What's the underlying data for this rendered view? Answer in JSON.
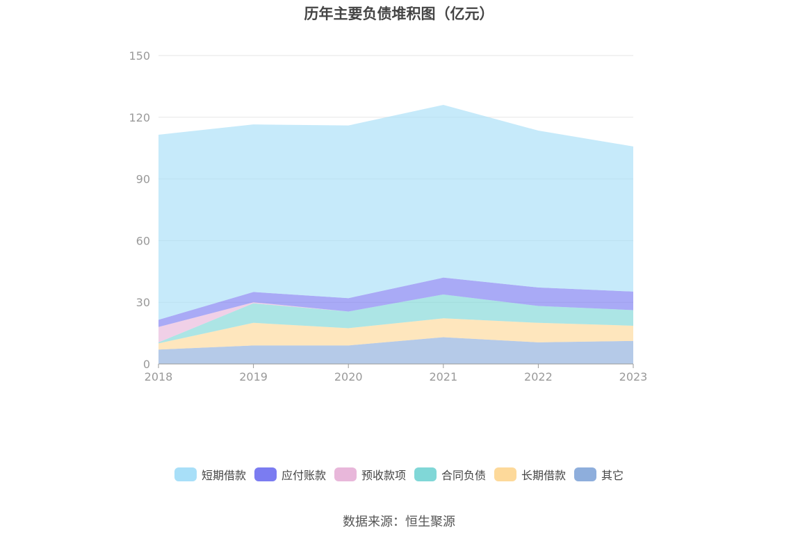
{
  "chart_data": {
    "type": "area",
    "stacked": true,
    "title": "历年主要负债堆积图（亿元）",
    "categories": [
      "2018",
      "2019",
      "2020",
      "2021",
      "2022",
      "2023"
    ],
    "ylim": [
      0,
      150
    ],
    "yticks": [
      "0",
      "30",
      "60",
      "90",
      "120",
      "150"
    ],
    "grid": true,
    "legend_position": "bottom",
    "series": [
      {
        "name": "其它",
        "color": "#8eaedc",
        "values": [
          7,
          9,
          9,
          13,
          10.5,
          11.2
        ]
      },
      {
        "name": "长期借款",
        "color": "#fdd99a",
        "values": [
          3,
          11,
          8.4,
          9.2,
          9.5,
          7.4
        ]
      },
      {
        "name": "合同负债",
        "color": "#80d7d7",
        "values": [
          0.5,
          9.5,
          8.1,
          11.6,
          8.2,
          7.6
        ]
      },
      {
        "name": "预收款项",
        "color": "#e8b7da",
        "values": [
          7.5,
          0.5,
          0,
          0,
          0,
          0
        ]
      },
      {
        "name": "应付账款",
        "color": "#7b7cf1",
        "values": [
          3.5,
          5,
          6.5,
          8.2,
          9,
          9
        ]
      },
      {
        "name": "短期借款",
        "color": "#a8dff8",
        "values": [
          90,
          81.5,
          84,
          84,
          76.3,
          70.6
        ]
      }
    ]
  },
  "source": "数据来源：恒生聚源"
}
